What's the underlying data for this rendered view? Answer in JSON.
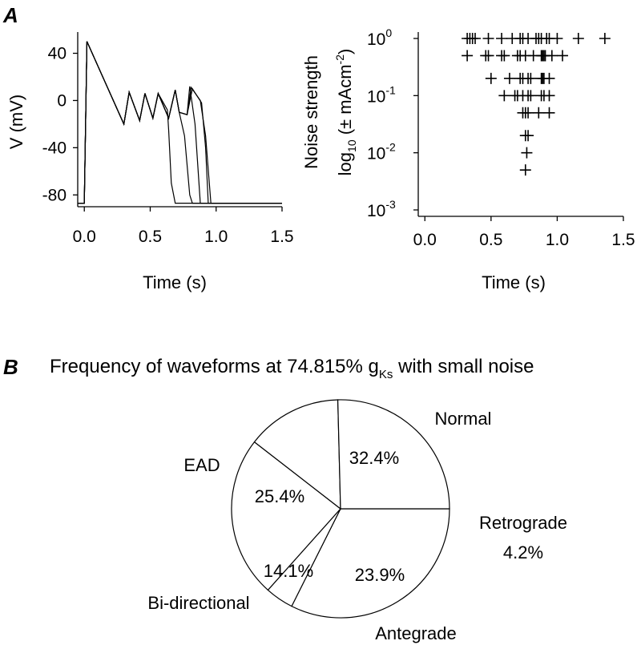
{
  "panels": {
    "a": "A",
    "b": "B"
  },
  "chart_data": [
    {
      "type": "line",
      "panel": "A",
      "xlabel": "Time (s)",
      "ylabel": "V (mV)",
      "xlim": [
        -0.05,
        1.5
      ],
      "ylim": [
        -90,
        58
      ],
      "xticks": [
        0.0,
        0.5,
        1.0,
        1.5
      ],
      "xtick_labels": [
        "0.0",
        "0.5",
        "1.0",
        "1.5"
      ],
      "yticks": [
        40,
        0,
        -40,
        -80
      ],
      "ytick_labels": [
        "40",
        "0",
        "-40",
        "-80"
      ],
      "series": [
        {
          "x": [
            -0.05,
            0,
            0.02,
            0.3,
            0.34,
            0.42,
            0.46,
            0.52,
            0.56,
            0.63,
            0.64,
            0.66,
            0.69,
            1.5
          ],
          "y": [
            -87,
            -87,
            50,
            -20,
            7,
            -17,
            6,
            -15,
            6,
            -8,
            -25,
            -70,
            -87,
            -87
          ]
        },
        {
          "x": [
            -0.05,
            0,
            0.02,
            0.3,
            0.34,
            0.42,
            0.46,
            0.52,
            0.56,
            0.64,
            0.69,
            0.72,
            0.76,
            0.8,
            0.82,
            0.85,
            1.5
          ],
          "y": [
            -87,
            -87,
            50,
            -20,
            7,
            -17,
            6,
            -15,
            6,
            -15,
            9,
            -10,
            -30,
            -80,
            -87,
            -87,
            -87
          ]
        },
        {
          "x": [
            -0.05,
            0,
            0.02,
            0.3,
            0.34,
            0.42,
            0.46,
            0.52,
            0.56,
            0.64,
            0.69,
            0.72,
            0.78,
            0.8,
            0.84,
            0.88,
            1.5
          ],
          "y": [
            -87,
            -87,
            50,
            -20,
            7,
            -17,
            6,
            -15,
            6,
            -15,
            9,
            -10,
            -12,
            12,
            -20,
            -87,
            -87
          ]
        },
        {
          "x": [
            -0.05,
            0,
            0.02,
            0.3,
            0.34,
            0.42,
            0.46,
            0.52,
            0.56,
            0.64,
            0.69,
            0.72,
            0.78,
            0.81,
            0.88,
            0.92,
            0.96,
            1.5
          ],
          "y": [
            -87,
            -87,
            50,
            -20,
            7,
            -17,
            6,
            -15,
            6,
            -15,
            9,
            -10,
            -12,
            11,
            0,
            -30,
            -87,
            -87
          ]
        },
        {
          "x": [
            -0.05,
            0,
            0.02,
            0.3,
            0.34,
            0.42,
            0.46,
            0.52,
            0.56,
            0.64,
            0.69,
            0.72,
            0.78,
            0.82,
            0.89,
            0.92,
            0.94,
            1.5
          ],
          "y": [
            -87,
            -87,
            50,
            -20,
            7,
            -17,
            6,
            -15,
            6,
            -15,
            9,
            -10,
            -12,
            10,
            -2,
            -40,
            -87,
            -87
          ]
        }
      ]
    },
    {
      "type": "scatter",
      "panel": "A",
      "xlabel": "Time (s)",
      "ylabel": "Noise strength",
      "ylabel2": "log10 (± mAcm-2)",
      "yscale": "log",
      "xlim": [
        -0.05,
        1.5
      ],
      "ylim": [
        0.001,
        1
      ],
      "xticks": [
        0.0,
        0.5,
        1.0,
        1.5
      ],
      "xtick_labels": [
        "0.0",
        "0.5",
        "1.0",
        "1.5"
      ],
      "ytick_labels": [
        "10^0",
        "10^-1",
        "10^-2",
        "10^-3"
      ],
      "series": [
        {
          "y": 1.0,
          "x": [
            0.32,
            0.34,
            0.36,
            0.38,
            0.48,
            0.58,
            0.66,
            0.72,
            0.74,
            0.78,
            0.84,
            0.86,
            0.88,
            0.92,
            0.94,
            1.0,
            1.16,
            1.36
          ]
        },
        {
          "y": 0.5,
          "x": [
            0.32,
            0.46,
            0.48,
            0.58,
            0.6,
            0.7,
            0.72,
            0.76,
            0.82,
            0.88,
            0.89,
            0.9,
            0.91,
            0.96,
            1.04
          ]
        },
        {
          "y": 0.2,
          "x": [
            0.5,
            0.64,
            0.72,
            0.74,
            0.78,
            0.8,
            0.88,
            0.89,
            0.9,
            0.94
          ]
        },
        {
          "y": 0.1,
          "x": [
            0.6,
            0.68,
            0.7,
            0.74,
            0.78,
            0.8,
            0.88,
            0.9,
            0.94
          ]
        },
        {
          "y": 0.05,
          "x": [
            0.74,
            0.76,
            0.78,
            0.86,
            0.94
          ]
        },
        {
          "y": 0.02,
          "x": [
            0.76,
            0.78
          ]
        },
        {
          "y": 0.01,
          "x": [
            0.77
          ]
        },
        {
          "y": 0.005,
          "x": [
            0.76
          ]
        }
      ]
    },
    {
      "type": "pie",
      "panel": "B",
      "title": "Frequency of waveforms at 74.815% g",
      "title_sub": "Ks",
      "title_tail": " with small noise",
      "slices": [
        {
          "name": "Normal",
          "value": 32.4,
          "label": "32.4%"
        },
        {
          "name": "Retrograde",
          "value": 4.2,
          "label": "4.2%"
        },
        {
          "name": "Antegrade",
          "value": 23.9,
          "label": "23.9%"
        },
        {
          "name": "Bi-directional",
          "value": 14.1,
          "label": "14.1%"
        },
        {
          "name": "EAD",
          "value": 25.4,
          "label": "25.4%"
        }
      ]
    }
  ]
}
